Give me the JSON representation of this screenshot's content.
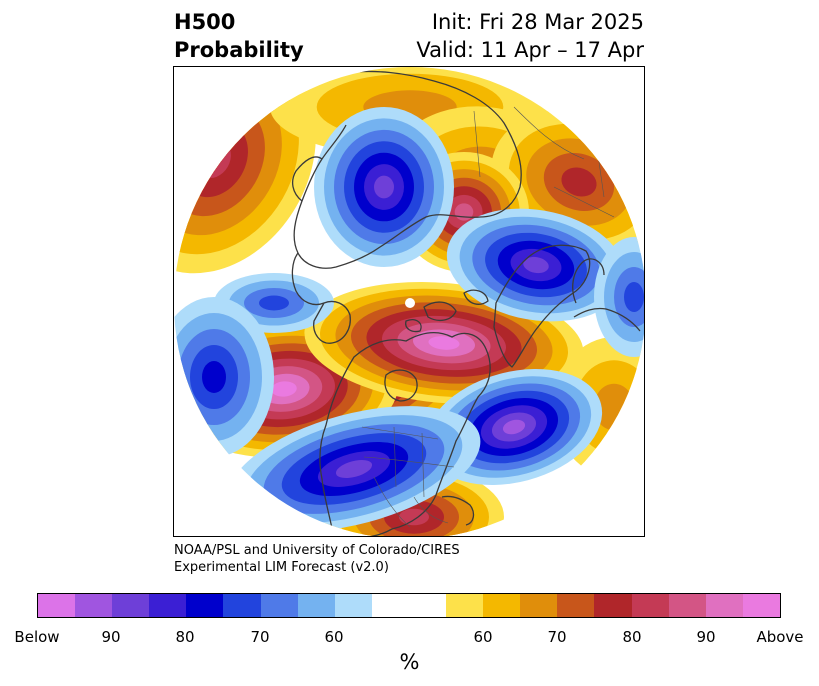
{
  "title": {
    "variable": "H500",
    "product": "Probability",
    "init": "Init: Fri 28 Mar 2025",
    "valid": "Valid: 11 Apr – 17 Apr"
  },
  "credit": {
    "line1": "NOAA/PSL and University of Colorado/CIRES",
    "line2": "Experimental LIM Forecast (v2.0)"
  },
  "colorbar": {
    "unit": "%",
    "colors": [
      "#dc73e8",
      "#a055e0",
      "#6e3fd8",
      "#3b1fd4",
      "#0000cc",
      "#2244dd",
      "#4f7ae8",
      "#74b2f0",
      "#aedcfa",
      "#ffffff",
      "#ffffff",
      "#fde14a",
      "#f4b800",
      "#e08e0b",
      "#c8561b",
      "#b0262a",
      "#c43a55",
      "#d35585",
      "#e070c0",
      "#ea7ae0"
    ],
    "tick_labels": [
      "Below",
      "90",
      "80",
      "70",
      "60",
      "60",
      "70",
      "80",
      "90",
      "Above"
    ]
  }
}
